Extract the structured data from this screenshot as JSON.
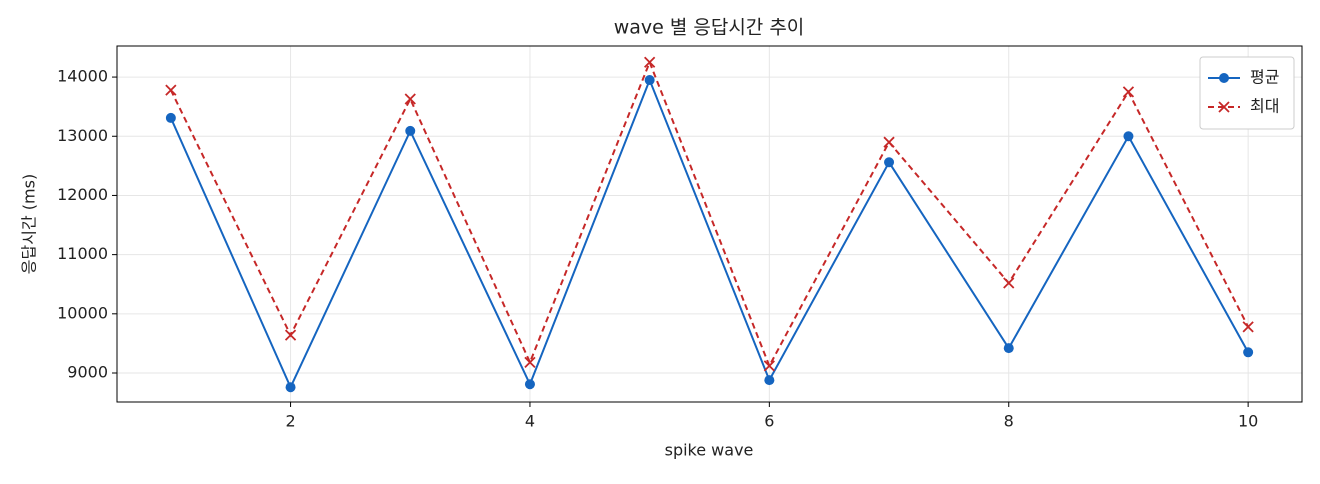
{
  "chart_data": {
    "type": "line",
    "title": "wave 별 응답시간 추이",
    "xlabel": "spike wave",
    "ylabel": "응답시간 (ms)",
    "x": [
      1,
      2,
      3,
      4,
      5,
      6,
      7,
      8,
      9,
      10
    ],
    "series": [
      {
        "name": "평균",
        "color": "#1565c0",
        "dash": false,
        "marker": "circle",
        "values": [
          13310,
          8760,
          13090,
          8810,
          13950,
          8880,
          12560,
          9420,
          13000,
          9350
        ]
      },
      {
        "name": "최대",
        "color": "#c62828",
        "dash": true,
        "marker": "cross",
        "values": [
          13780,
          9640,
          13630,
          9180,
          14250,
          9120,
          12900,
          10520,
          13750,
          9780
        ]
      }
    ],
    "xlim": [
      0.55,
      10.45
    ],
    "xticks": [
      2,
      4,
      6,
      8,
      10
    ],
    "ylim": [
      8510,
      14525
    ],
    "yticks": [
      9000,
      10000,
      11000,
      12000,
      13000,
      14000
    ],
    "grid": true,
    "legend": "upper right"
  }
}
